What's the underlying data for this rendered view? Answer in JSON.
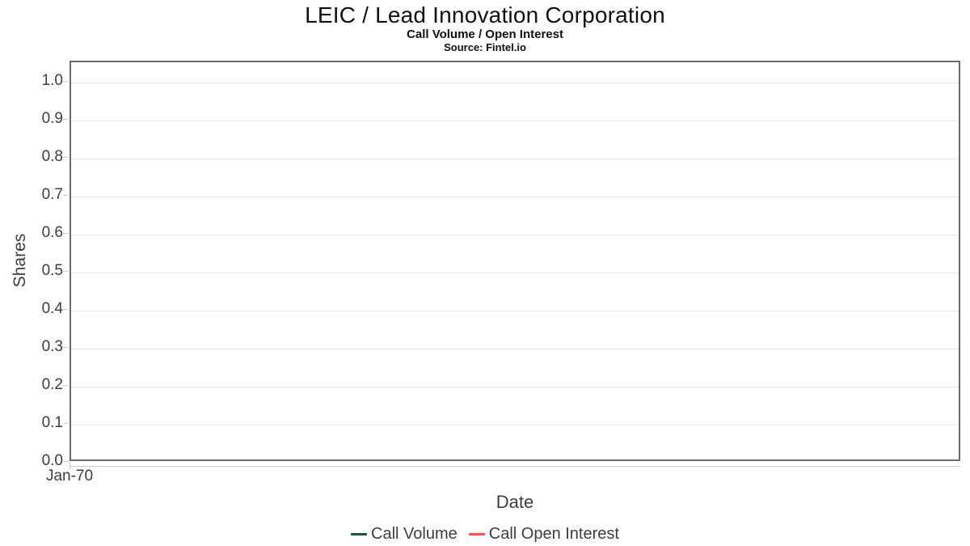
{
  "chart_data": {
    "type": "line",
    "title": "LEIC / Lead Innovation Corporation",
    "subtitle": "Call Volume / Open Interest",
    "source": "Source: Fintel.io",
    "xlabel": "Date",
    "ylabel": "Shares",
    "xticks": [
      "Jan-70"
    ],
    "yticks": [
      "1.0",
      "0.9",
      "0.8",
      "0.7",
      "0.6",
      "0.5",
      "0.4",
      "0.3",
      "0.2",
      "0.1",
      "0.0"
    ],
    "ylim": [
      0.0,
      1.05
    ],
    "grid": "horizontal",
    "legend_position": "bottom-center",
    "series": [
      {
        "name": "Call Volume",
        "color": "#1e5631",
        "values": []
      },
      {
        "name": "Call Open Interest",
        "color": "#fc5353",
        "values": []
      }
    ]
  }
}
